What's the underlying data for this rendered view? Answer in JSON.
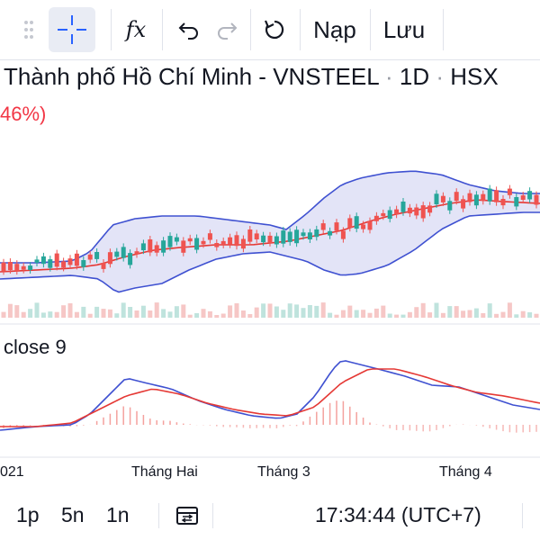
{
  "toolbar": {
    "functions_icon": "fx",
    "nap_label": "Nạp",
    "luu_label": "Lưu"
  },
  "header": {
    "city": "Thành phố Hồ Chí Minh",
    "dash": "-",
    "symbol": "VNSTEEL",
    "interval": "1D",
    "exchange": "HSX",
    "sep": "·"
  },
  "change_pct": "46%)",
  "indicator": {
    "label": "close 9"
  },
  "x_axis": {
    "labels": [
      "021",
      "Tháng Hai",
      "Tháng 3",
      "Tháng 4"
    ]
  },
  "bottom_bar": {
    "range_1p": "1p",
    "range_5n": "5n",
    "range_1n": "1n",
    "clock": "17:34:44 (UTC+7)"
  },
  "colors": {
    "up": "#26a69a",
    "down": "#ef5350",
    "band": "#3f51d1",
    "band_fill": "#e3e4f7",
    "basis": "#e53935",
    "macd": "#3f51d1",
    "signal": "#e53935",
    "accent": "#2962ff"
  },
  "icons": [
    "drag-handle-icon",
    "crosshair-icon",
    "fx-icon",
    "undo-icon",
    "redo-icon",
    "refresh-icon",
    "compare-icon"
  ]
}
